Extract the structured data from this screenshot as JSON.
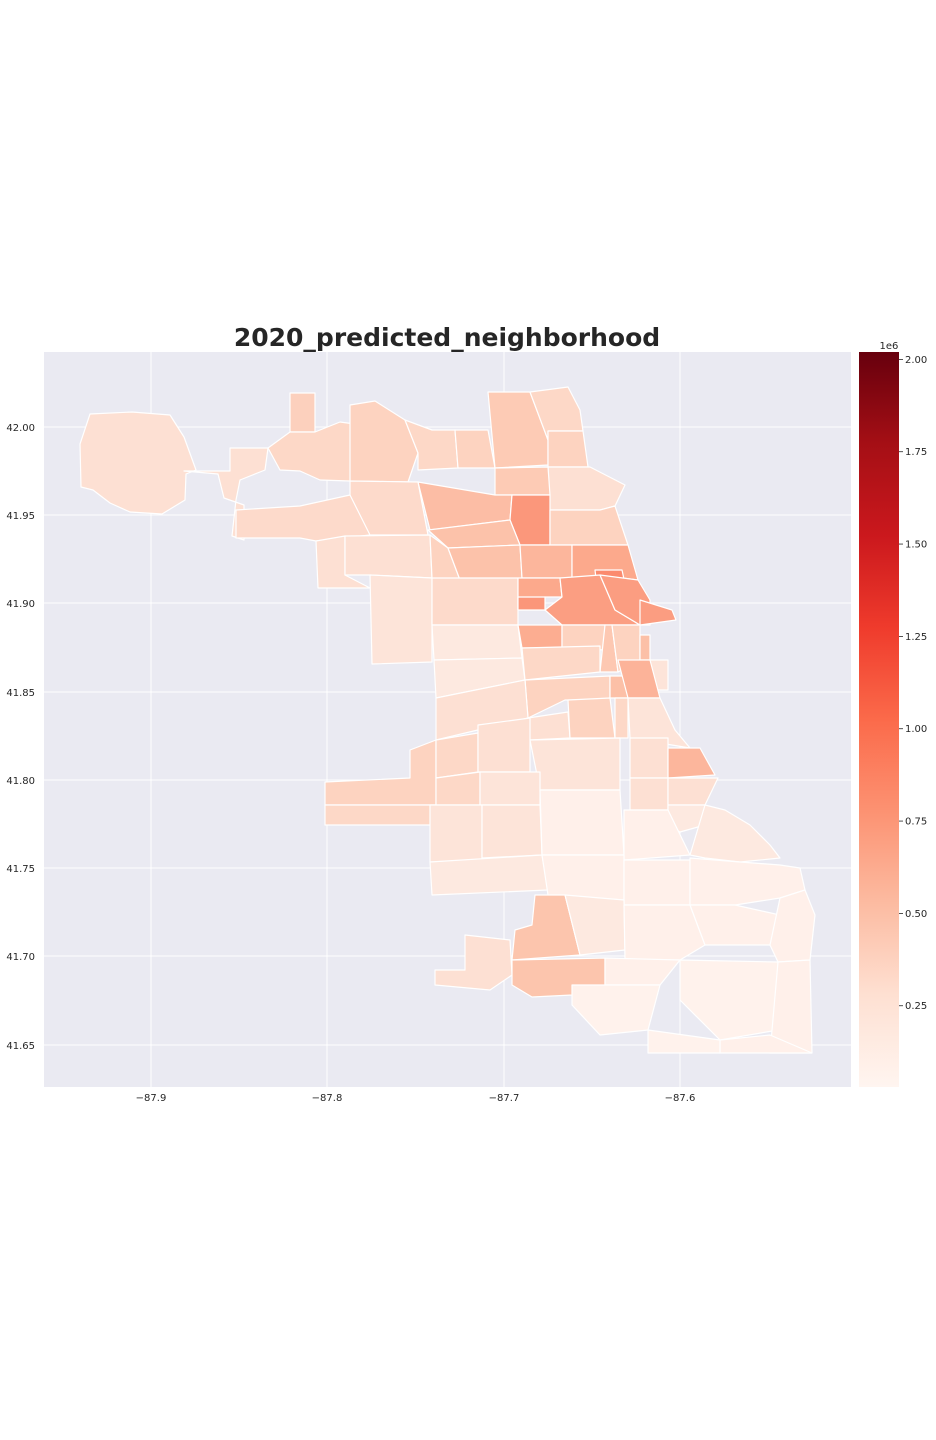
{
  "title": "2020_predicted_neighborhood",
  "map": {
    "type": "choropleth",
    "colormap": "Reds",
    "x_ticks": [
      "−87.9",
      "−87.8",
      "−87.7",
      "−87.6"
    ],
    "y_ticks": [
      "42.00",
      "41.95",
      "41.90",
      "41.85",
      "41.80",
      "41.75",
      "41.70",
      "41.65"
    ],
    "xlim": [
      -87.96,
      -87.5
    ],
    "ylim": [
      41.625,
      42.04
    ],
    "grid": true,
    "background_color": "#eaeaf2",
    "boundary_color": "#ffffff"
  },
  "colorbar": {
    "offset_label": "1e6",
    "ticks": [
      "0.25",
      "0.50",
      "0.75",
      "1.00",
      "1.25",
      "1.50",
      "1.75",
      "2.00"
    ],
    "tick_values": [
      0.25,
      0.5,
      0.75,
      1.0,
      1.25,
      1.5,
      1.75,
      2.0
    ],
    "range": [
      0.03,
      2.02
    ],
    "colors": [
      "#fff5f0",
      "#fee0d2",
      "#fcbba1",
      "#fc9272",
      "#fb6a4a",
      "#ef3b2c",
      "#cb181d",
      "#a50f15",
      "#67000d"
    ]
  }
}
